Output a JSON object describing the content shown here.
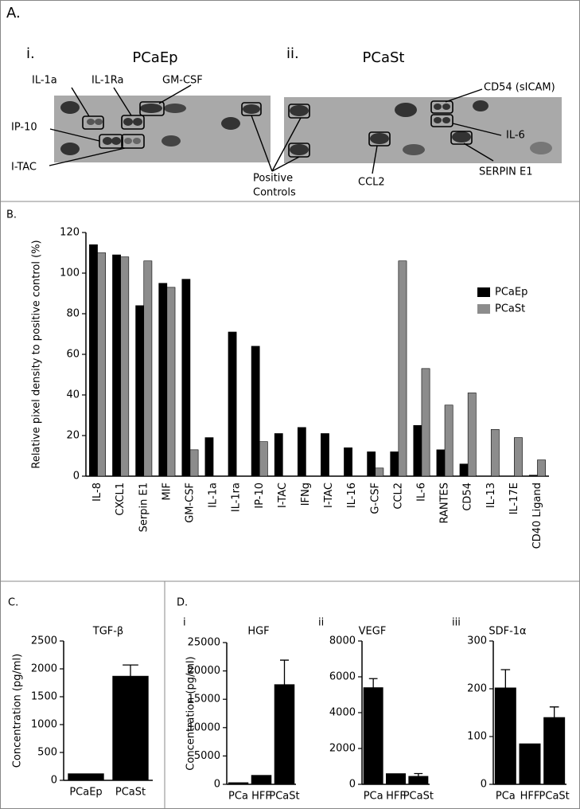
{
  "panel_a": {
    "label": "A.",
    "left": {
      "sublabel": "i.",
      "title": "PCaEp",
      "annotations": [
        "IL-1a",
        "IL-1Ra",
        "GM-CSF",
        "IP-10",
        "I-TAC"
      ]
    },
    "right": {
      "sublabel": "ii.",
      "title": "PCaSt",
      "annotations": [
        "CD54 (sICAM)",
        "IL-6",
        "SERPIN E1",
        "CCL2"
      ]
    },
    "positive_controls": [
      "Positive",
      "Controls"
    ]
  },
  "chart_data": [
    {
      "type": "bar",
      "label": "B.",
      "y_label": "Relative pixel density to positive control (%)",
      "categories": [
        "IL-8",
        "CXCL1",
        "Serpin E1",
        "MIF",
        "GM-CSF",
        "IL-1a",
        "IL-1ra",
        "IP-10",
        "I-TAC",
        "IFNg",
        "I-TAC",
        "IL-16",
        "G-CSF",
        "CCL2",
        "IL-6",
        "RANTES",
        "CD54",
        "IL-13",
        "IL-17E",
        "CD40 Ligand"
      ],
      "series": [
        {
          "name": "PCaEp",
          "color": "#000000",
          "values": [
            114,
            109,
            84,
            95,
            97,
            19,
            71,
            64,
            21,
            24,
            21,
            14,
            12,
            12,
            25,
            13,
            6,
            0,
            0,
            0.5
          ]
        },
        {
          "name": "PCaSt",
          "color": "#8c8c8c",
          "values": [
            110,
            108,
            106,
            93,
            13,
            0,
            0,
            17,
            0,
            0,
            0,
            0,
            4,
            106,
            53,
            35,
            41,
            23,
            19,
            8
          ]
        }
      ],
      "ylim": [
        0,
        120
      ],
      "yticks": [
        0,
        20,
        40,
        60,
        80,
        100,
        120
      ],
      "legend": "right"
    },
    {
      "type": "bar",
      "label": "C.",
      "title": "TGF-β",
      "y_label": "Concentration (pg/ml)",
      "categories": [
        "PCaEp",
        "PCaSt"
      ],
      "series": [
        {
          "color": "#000000",
          "values": [
            120,
            1870
          ],
          "errors": [
            null,
            200
          ]
        }
      ],
      "ylim": [
        0,
        2500
      ],
      "yticks": [
        0,
        500,
        1000,
        1500,
        2000,
        2500
      ]
    },
    {
      "type": "bar",
      "label": "D.",
      "sublabel": "i",
      "title": "HGF",
      "y_label": "Concentration (pg/ml)",
      "categories": [
        "PCa",
        "HFF",
        "PCaSt"
      ],
      "series": [
        {
          "color": "#000000",
          "values": [
            300,
            1600,
            17600
          ],
          "errors": [
            null,
            null,
            4300
          ]
        }
      ],
      "ylim": [
        0,
        25000
      ],
      "yticks": [
        0,
        5000,
        10000,
        15000,
        20000,
        25000
      ]
    },
    {
      "type": "bar",
      "sublabel": "ii",
      "title": "VEGF",
      "categories": [
        "PCa",
        "HFF",
        "PCaSt"
      ],
      "series": [
        {
          "color": "#000000",
          "values": [
            5400,
            600,
            450
          ],
          "errors": [
            500,
            null,
            150
          ]
        }
      ],
      "ylim": [
        0,
        8000
      ],
      "yticks": [
        0,
        2000,
        4000,
        6000,
        8000
      ]
    },
    {
      "type": "bar",
      "sublabel": "iii",
      "title": "SDF-1α",
      "categories": [
        "PCa",
        "HFF",
        "PCaSt"
      ],
      "series": [
        {
          "color": "#000000",
          "values": [
            202,
            85,
            140
          ],
          "errors": [
            38,
            null,
            22
          ]
        }
      ],
      "ylim": [
        0,
        300
      ],
      "yticks": [
        0,
        100,
        200,
        300
      ]
    }
  ]
}
